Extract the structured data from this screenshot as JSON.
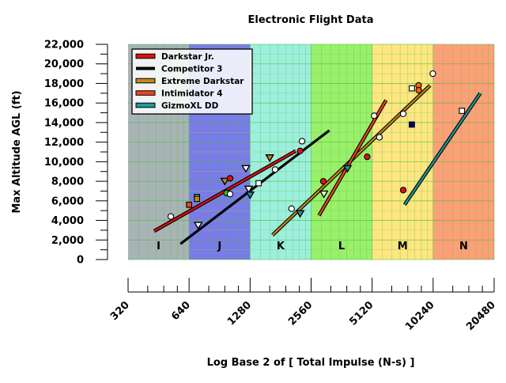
{
  "chart_data": {
    "type": "scatter",
    "title": "Electronic Flight Data",
    "xlabel": "Log Base 2 of [ Total Impulse (N-s) ]",
    "ylabel": "Max Altitude AGL (ft)",
    "x_scale": "log2",
    "xlim": [
      320,
      20480
    ],
    "ylim": [
      0,
      22000
    ],
    "x_ticks": [
      "320",
      "640",
      "1280",
      "2560",
      "5120",
      "10240",
      "20480"
    ],
    "y_ticks": [
      "0",
      "2,000",
      "4,000",
      "6,000",
      "8,000",
      "10,000",
      "12,000",
      "14,000",
      "16,000",
      "18,000",
      "20,000",
      "22,000"
    ],
    "grid": true,
    "legend_position": "top-left",
    "bands": [
      {
        "label": "I",
        "from": 320,
        "to": 640,
        "color": "#a9b3b6"
      },
      {
        "label": "J",
        "from": 640,
        "to": 1280,
        "color": "#7b7be8"
      },
      {
        "label": "K",
        "from": 1280,
        "to": 2560,
        "color": "#9eeedd"
      },
      {
        "label": "L",
        "from": 2560,
        "to": 5120,
        "color": "#9af06a"
      },
      {
        "label": "M",
        "from": 5120,
        "to": 10240,
        "color": "#ffe680"
      },
      {
        "label": "N",
        "from": 10240,
        "to": 20480,
        "color": "#ff9f78"
      }
    ],
    "series": [
      {
        "name": "Darkstar Jr.",
        "color": "#dd1111",
        "fit": [
          [
            430,
            2900
          ],
          [
            2150,
            11100
          ]
        ]
      },
      {
        "name": "Competitor 3",
        "color": "#000000",
        "fit": [
          [
            580,
            1600
          ],
          [
            3150,
            13200
          ]
        ]
      },
      {
        "name": "Extreme Darkstar",
        "color": "#c08a1e",
        "fit": [
          [
            1650,
            2500
          ],
          [
            9900,
            17800
          ]
        ]
      },
      {
        "name": "Intimidator 4",
        "color": "#ee4422",
        "fit": [
          [
            2800,
            4500
          ],
          [
            6000,
            16300
          ]
        ]
      },
      {
        "name": "GizmoXL DD",
        "color": "#1e9a9a",
        "fit": [
          [
            7400,
            5600
          ],
          [
            17500,
            17000
          ]
        ]
      }
    ],
    "points": [
      {
        "marker": "circle",
        "fill": "#ffffff",
        "x": 520,
        "y": 4400
      },
      {
        "marker": "square",
        "fill": "#ee4422",
        "x": 640,
        "y": 5600
      },
      {
        "marker": "square",
        "fill": "#22cc22",
        "x": 700,
        "y": 6400
      },
      {
        "marker": "square",
        "fill": "#c08a1e",
        "x": 700,
        "y": 6200
      },
      {
        "marker": "triangle",
        "fill": "#ffffff",
        "x": 710,
        "y": 3500
      },
      {
        "marker": "triangle",
        "fill": "#c08a1e",
        "x": 960,
        "y": 8000
      },
      {
        "marker": "circle",
        "fill": "#dd1111",
        "x": 1020,
        "y": 8300
      },
      {
        "marker": "circle",
        "fill": "#22cc22",
        "x": 980,
        "y": 6800
      },
      {
        "marker": "circle",
        "fill": "#ffffff",
        "x": 1020,
        "y": 6700
      },
      {
        "marker": "triangle",
        "fill": "#ffffff",
        "x": 1220,
        "y": 9300
      },
      {
        "marker": "triangle",
        "fill": "#ffffff",
        "x": 1260,
        "y": 7200
      },
      {
        "marker": "triangle",
        "fill": "#1e9a9a",
        "x": 1280,
        "y": 6600
      },
      {
        "marker": "square",
        "fill": "#ffffff",
        "x": 1410,
        "y": 7800
      },
      {
        "marker": "triangle",
        "fill": "#c08a1e",
        "x": 1600,
        "y": 10400
      },
      {
        "marker": "circle",
        "fill": "#ffffff",
        "x": 1700,
        "y": 9200
      },
      {
        "marker": "circle",
        "fill": "#ffffff",
        "x": 2050,
        "y": 5200
      },
      {
        "marker": "triangle",
        "fill": "#1e9a9a",
        "x": 2260,
        "y": 4700
      },
      {
        "marker": "circle",
        "fill": "#dd1111",
        "x": 2260,
        "y": 11100
      },
      {
        "marker": "circle",
        "fill": "#ffffff",
        "x": 2310,
        "y": 12100
      },
      {
        "marker": "circle",
        "fill": "#dd1111",
        "x": 2940,
        "y": 8000
      },
      {
        "marker": "triangle",
        "fill": "#ffffff",
        "x": 2960,
        "y": 6700
      },
      {
        "marker": "triangle",
        "fill": "#1e9a9a",
        "x": 3870,
        "y": 9300
      },
      {
        "marker": "circle",
        "fill": "#dd1111",
        "x": 4840,
        "y": 10500
      },
      {
        "marker": "circle",
        "fill": "#ffffff",
        "x": 5240,
        "y": 14700
      },
      {
        "marker": "circle",
        "fill": "#ffffff",
        "x": 5560,
        "y": 12500
      },
      {
        "marker": "circle",
        "fill": "#ffffff",
        "x": 7290,
        "y": 14900
      },
      {
        "marker": "circle",
        "fill": "#dd1111",
        "x": 7290,
        "y": 7100
      },
      {
        "marker": "square",
        "fill": "#000080",
        "x": 8040,
        "y": 13800
      },
      {
        "marker": "square",
        "fill": "#ffffff",
        "x": 8040,
        "y": 17500
      },
      {
        "marker": "circle",
        "fill": "#ff6600",
        "x": 8680,
        "y": 17800
      },
      {
        "marker": "circle",
        "fill": "#ff6600",
        "x": 8700,
        "y": 17300
      },
      {
        "marker": "circle",
        "fill": "#ffffff",
        "x": 10200,
        "y": 19000
      },
      {
        "marker": "square",
        "fill": "#ffffff",
        "x": 14200,
        "y": 15200
      }
    ]
  }
}
